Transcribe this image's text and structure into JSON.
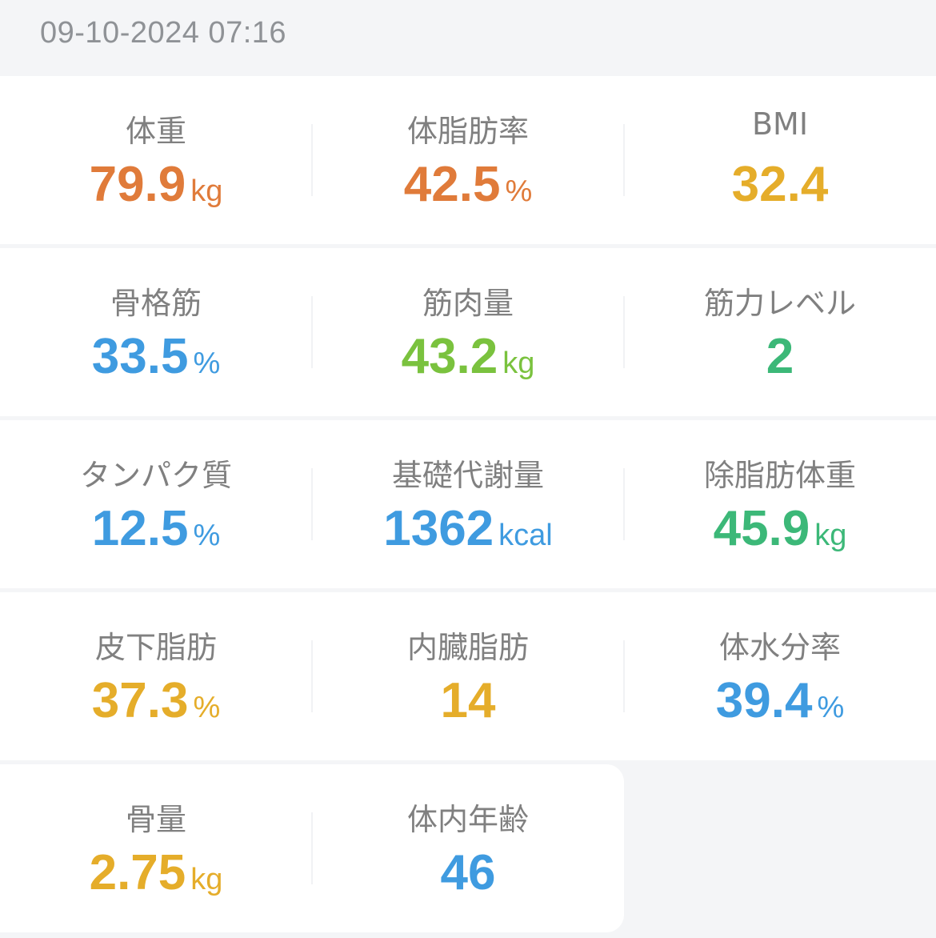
{
  "timestamp": "09-10-2024 07:16",
  "colors": {
    "orange": "#e07b3a",
    "gold": "#e5ad2a",
    "blue": "#3f9be0",
    "green": "#7ac23e",
    "teal": "#3cb878"
  },
  "metrics": [
    {
      "label": "体重",
      "value": "79.9",
      "unit": "kg",
      "color": "#e07b3a"
    },
    {
      "label": "体脂肪率",
      "value": "42.5",
      "unit": "%",
      "color": "#e07b3a"
    },
    {
      "label": "BMI",
      "value": "32.4",
      "unit": "",
      "color": "#e5ad2a"
    },
    {
      "label": "骨格筋",
      "value": "33.5",
      "unit": "%",
      "color": "#3f9be0"
    },
    {
      "label": "筋肉量",
      "value": "43.2",
      "unit": "kg",
      "color": "#7ac23e"
    },
    {
      "label": "筋力レベル",
      "value": "2",
      "unit": "",
      "color": "#3cb878"
    },
    {
      "label": "タンパク質",
      "value": "12.5",
      "unit": "%",
      "color": "#3f9be0"
    },
    {
      "label": "基礎代謝量",
      "value": "1362",
      "unit": "kcal",
      "color": "#3f9be0"
    },
    {
      "label": "除脂肪体重",
      "value": "45.9",
      "unit": "kg",
      "color": "#3cb878"
    },
    {
      "label": "皮下脂肪",
      "value": "37.3",
      "unit": "%",
      "color": "#e5ad2a"
    },
    {
      "label": "内臓脂肪",
      "value": "14",
      "unit": "",
      "color": "#e5ad2a"
    },
    {
      "label": "体水分率",
      "value": "39.4",
      "unit": "%",
      "color": "#3f9be0"
    },
    {
      "label": "骨量",
      "value": "2.75",
      "unit": "kg",
      "color": "#e5ad2a"
    },
    {
      "label": "体内年齢",
      "value": "46",
      "unit": "",
      "color": "#3f9be0"
    }
  ]
}
